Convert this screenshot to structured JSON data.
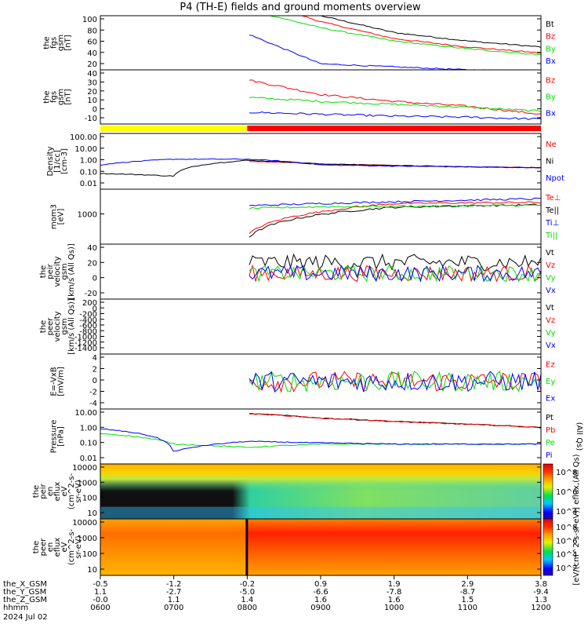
{
  "title": "P4 (TH-E) fields and ground moments overview",
  "chart_data": [
    {
      "type": "line",
      "ylabel": [
        "the",
        "fgs",
        "gsm",
        "[nT]"
      ],
      "ylim": [
        10,
        100
      ],
      "y_ticks": [
        "100",
        "80",
        "60",
        "40",
        "20"
      ],
      "x": [
        "0600",
        "0700",
        "0800",
        "0900",
        "1000",
        "1100",
        "1200"
      ],
      "series": [
        {
          "name": "Bt",
          "color": "#000000",
          "values": [
            null,
            null,
            140,
            100,
            72,
            58,
            48
          ]
        },
        {
          "name": "Bz",
          "color": "#ff0000",
          "values": [
            null,
            null,
            130,
            90,
            62,
            48,
            38
          ]
        },
        {
          "name": "By",
          "color": "#00dd00",
          "values": [
            null,
            null,
            110,
            80,
            58,
            45,
            35
          ]
        },
        {
          "name": "Bx",
          "color": "#0000ff",
          "values": [
            null,
            null,
            70,
            20,
            15,
            10,
            8
          ]
        }
      ]
    },
    {
      "type": "line",
      "ylabel": [
        "the",
        "fgs",
        "gsm",
        "[nT]"
      ],
      "ylim": [
        -15,
        40
      ],
      "y_ticks": [
        "40",
        "30",
        "20",
        "10",
        "0",
        "-10"
      ],
      "series": [
        {
          "name": "Bz",
          "color": "#ff0000",
          "values": [
            null,
            null,
            30,
            15,
            8,
            3,
            -5
          ]
        },
        {
          "name": "By",
          "color": "#00dd00",
          "values": [
            null,
            null,
            12,
            8,
            5,
            2,
            -2
          ]
        },
        {
          "name": "Bx",
          "color": "#0000ff",
          "values": [
            null,
            null,
            -3,
            -5,
            -7,
            -8,
            -10
          ]
        }
      ]
    },
    {
      "type": "line",
      "ylabel": [
        "Density",
        "[1/cc]",
        "[cm-3]"
      ],
      "yscale": "log",
      "ylim": [
        0.005,
        200
      ],
      "y_ticks": [
        "100.00",
        "10.00",
        "1.00",
        "0.10",
        "0.01"
      ],
      "series": [
        {
          "name": "Ne",
          "color": "#ff0000",
          "values": [
            null,
            null,
            1.0,
            0.6,
            0.45,
            0.35,
            0.3
          ]
        },
        {
          "name": "Ni",
          "color": "#000000",
          "values": [
            0.1,
            0.06,
            1.2,
            0.6,
            0.45,
            0.35,
            0.3
          ]
        },
        {
          "name": "Npot",
          "color": "#0000ff",
          "values": [
            0.5,
            1.5,
            1.5,
            0.5,
            0.4,
            0.35,
            0.3
          ]
        }
      ]
    },
    {
      "type": "line",
      "ylabel": [
        "mom3",
        "[eV]"
      ],
      "yscale": "log",
      "y_ticks": [
        "1000"
      ],
      "series": [
        {
          "name": "Te⊥",
          "color": "#ff0000",
          "values": [
            null,
            null,
            200,
            1500,
            3000,
            3200,
            3300
          ]
        },
        {
          "name": "Te||",
          "color": "#000000",
          "values": [
            null,
            null,
            150,
            1200,
            2200,
            2500,
            2700
          ]
        },
        {
          "name": "Ti⊥",
          "color": "#0000ff",
          "values": [
            null,
            null,
            2500,
            3000,
            3500,
            4000,
            4500
          ]
        },
        {
          "name": "Ti||",
          "color": "#00dd00",
          "values": [
            null,
            null,
            2000,
            2300,
            2400,
            2500,
            2600
          ]
        }
      ]
    },
    {
      "type": "line",
      "ylabel": [
        "the",
        "peir",
        "velocity",
        "gsm",
        "[km/s (All Qs)]"
      ],
      "ylim": [
        -35,
        40
      ],
      "y_ticks": [
        "40",
        "20",
        "0",
        "-20"
      ],
      "series": [
        {
          "name": "Vt",
          "color": "#000000",
          "values": [
            null,
            null,
            15,
            15,
            15,
            15,
            15
          ]
        },
        {
          "name": "Vz",
          "color": "#ff0000",
          "values": [
            null,
            null,
            0,
            0,
            0,
            0,
            0
          ]
        },
        {
          "name": "Vy",
          "color": "#00dd00",
          "values": [
            null,
            null,
            0,
            0,
            0,
            0,
            0
          ]
        },
        {
          "name": "Vx",
          "color": "#0000ff",
          "values": [
            null,
            null,
            0,
            0,
            0,
            0,
            0
          ]
        }
      ]
    },
    {
      "type": "line",
      "ylabel": [
        "the",
        "peer",
        "velocity",
        "gsm",
        "[km/s (All Qs)]"
      ],
      "ylim": [
        -1400,
        200
      ],
      "y_ticks": [
        "200",
        "0",
        "-200",
        "-400",
        "-600",
        "-800",
        "-1000",
        "-1200",
        "-1400"
      ],
      "series": [
        {
          "name": "Vt",
          "color": "#000000",
          "values": []
        },
        {
          "name": "Vz",
          "color": "#ff0000",
          "values": []
        },
        {
          "name": "Vy",
          "color": "#00dd00",
          "values": []
        },
        {
          "name": "Vx",
          "color": "#0000ff",
          "values": []
        }
      ]
    },
    {
      "type": "line",
      "ylabel": [
        "E=-VxB",
        "[mV/m]"
      ],
      "ylim": [
        -4,
        4
      ],
      "y_ticks": [
        "4",
        "2",
        "0",
        "-2",
        "-4"
      ],
      "series": [
        {
          "name": "Ez",
          "color": "#ff0000",
          "values": [
            null,
            null,
            0,
            0,
            0,
            0,
            0
          ]
        },
        {
          "name": "Ey",
          "color": "#00dd00",
          "values": [
            null,
            null,
            0,
            0,
            0,
            0,
            0
          ]
        },
        {
          "name": "Ex",
          "color": "#0000ff",
          "values": [
            null,
            null,
            0,
            0,
            0,
            0,
            0
          ]
        }
      ]
    },
    {
      "type": "line",
      "ylabel": [
        "Pressure",
        "[nPa]"
      ],
      "yscale": "log",
      "ylim": [
        0.005,
        20
      ],
      "y_ticks": [
        "10.00",
        "1.00",
        "0.10",
        "0.01"
      ],
      "series": [
        {
          "name": "Pt",
          "color": "#000000",
          "values": [
            null,
            null,
            10,
            5,
            3,
            2,
            1.2
          ]
        },
        {
          "name": "Pb",
          "color": "#ff0000",
          "values": [
            null,
            null,
            10,
            5,
            3,
            2,
            1.2
          ]
        },
        {
          "name": "Pe",
          "color": "#00dd00",
          "values": [
            0.5,
            0.1,
            0.06,
            0.1,
            0.1,
            0.1,
            0.1
          ]
        },
        {
          "name": "Pi",
          "color": "#0000ff",
          "values": [
            1.0,
            0.03,
            0.15,
            0.12,
            0.1,
            0.1,
            0.1
          ]
        }
      ],
      "legend_note": "(All Qs)"
    },
    {
      "type": "heatmap",
      "ylabel": [
        "the",
        "peir",
        "en",
        "eflux",
        "eV",
        "(cm^2-s-",
        "sr-eV)"
      ],
      "yscale": "log",
      "y_ticks": [
        "10000",
        "1000",
        "100",
        "10"
      ],
      "colorbar_ticks": [
        "10^8",
        "10^6",
        "10^4"
      ]
    },
    {
      "type": "heatmap",
      "ylabel": [
        "the",
        "peer",
        "en",
        "eflux",
        "eV",
        "(cm^2-s-",
        "sr-eV)"
      ],
      "yscale": "log",
      "y_ticks": [
        "10000",
        "1000",
        "100",
        "10"
      ],
      "colorbar_ticks": [
        "10^8",
        "10^6",
        "10^4",
        "10^2"
      ]
    }
  ],
  "colorbar_label": "[eV/(cm^2-s-sr-eV)] eflux,(All Qs)",
  "x_axis": {
    "rows": [
      {
        "name": "the_X_GSM",
        "values": [
          "-0.5",
          "-1.2",
          "-0.2",
          "0.9",
          "1.9",
          "2.9",
          "3.8"
        ]
      },
      {
        "name": "the_Y_GSM",
        "values": [
          "1.1",
          "-2.7",
          "-5.0",
          "-6.6",
          "-7.8",
          "-8.7",
          "-9.4"
        ]
      },
      {
        "name": "the_Z_GSM",
        "values": [
          "-0.0",
          "1.1",
          "1.4",
          "1.6",
          "1.6",
          "1.5",
          "1.3"
        ]
      },
      {
        "name": "hhmm",
        "values": [
          "0600",
          "0700",
          "0800",
          "0900",
          "1000",
          "1100",
          "1200"
        ]
      }
    ],
    "date": "2024 Jul 02"
  }
}
